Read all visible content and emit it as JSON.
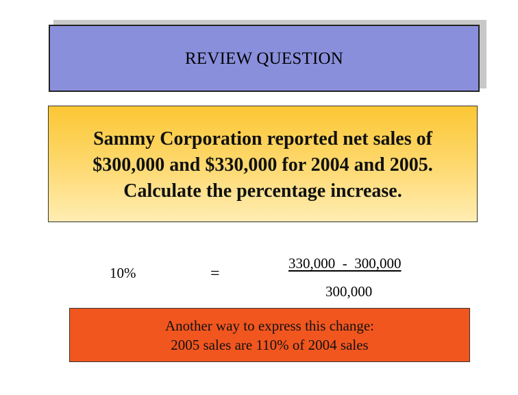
{
  "title": "REVIEW QUESTION",
  "question": {
    "line1": "Sammy Corporation reported net sales of",
    "line2": "$300,000 and $330,000 for 2004 and 2005.",
    "line3": "Calculate the percentage increase."
  },
  "answer": {
    "result": "10%",
    "equals": "=",
    "numerator": "330,000  -  300,000",
    "denominator": "300,000"
  },
  "note": {
    "line1": "Another way to express this change:",
    "line2": "2005 sales are 110% of 2004 sales"
  },
  "colors": {
    "title_background": "#8a8fdc",
    "question_background_top": "#fcc734",
    "question_background_bottom": "#ffedb2",
    "note_background": "#f2561f"
  }
}
